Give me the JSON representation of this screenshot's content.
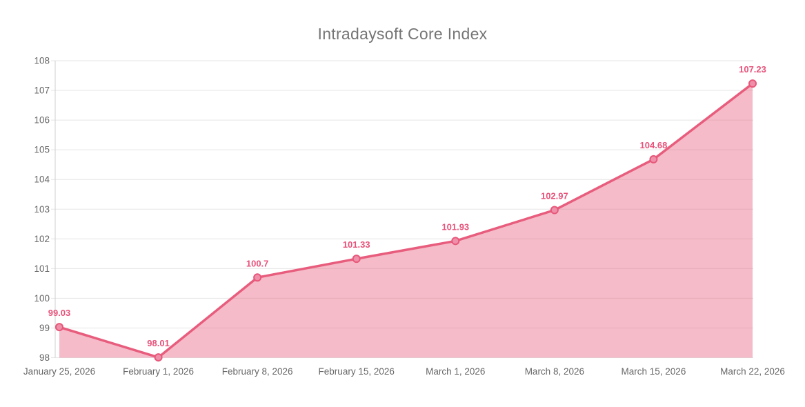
{
  "page": {
    "background": "#ffffff"
  },
  "chart_data": {
    "type": "area",
    "title": "Intradaysoft Core Index",
    "categories": [
      "January 25, 2026",
      "February 1, 2026",
      "February 8, 2026",
      "February 15, 2026",
      "March 1, 2026",
      "March 8, 2026",
      "March 15, 2026",
      "March 22, 2026"
    ],
    "series": [
      {
        "name": "Intradaysoft Core Index",
        "values": [
          99.03,
          98.01,
          100.7,
          101.33,
          101.93,
          102.97,
          104.68,
          107.23
        ]
      }
    ],
    "point_labels": [
      "99.03",
      "98.01",
      "100.7",
      "101.33",
      "101.93",
      "102.97",
      "104.68",
      "107.23"
    ],
    "xlabel": "",
    "ylabel": "",
    "ylim": [
      98,
      108
    ],
    "ytick_step": 1,
    "grid": "horizontal",
    "legend_position": "none",
    "colors": {
      "line": "#e85d7d",
      "area_fill": "rgba(232, 93, 125, 0.42)",
      "marker_fill": "#ee90a9",
      "marker_stroke": "#e8577a",
      "point_label": "#e8527a",
      "axis_text": "#666666",
      "title_text": "#757575",
      "gridline": "#e5e5e5",
      "axis_line": "#cfcfcf"
    }
  }
}
